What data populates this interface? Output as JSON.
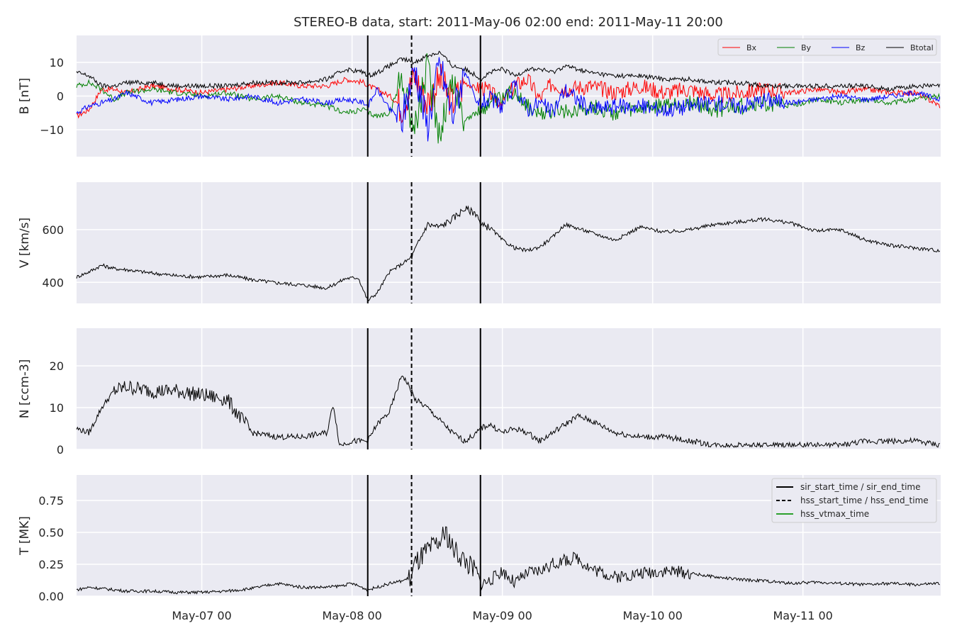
{
  "title": "STEREO-B data, start: 2011-May-06 02:00  end: 2011-May-11 20:00",
  "colors": {
    "panel_bg": "#eaeaf2",
    "grid": "#ffffff",
    "bx": "#ff0000",
    "by": "#008000",
    "bz": "#0000ff",
    "btotal": "#000000",
    "event_line": "#000000",
    "vtmax": "#2ca02c"
  },
  "time_axis": {
    "start_hours": 2,
    "end_hours": 140,
    "tick_hours": [
      22,
      46,
      70,
      94,
      118
    ],
    "tick_labels": [
      "May-07 00",
      "May-08 00",
      "May-09 00",
      "May-10 00",
      "May-11 00"
    ]
  },
  "events": {
    "sir_start_hours": 48.5,
    "hss_start_hours": 55.5,
    "sir_end_hours": 66.5
  },
  "legends": {
    "b_field": [
      "Bx",
      "By",
      "Bz",
      "Btotal"
    ],
    "events": [
      "sir_start_time / sir_end_time",
      "hss_start_time / hss_end_time",
      "hss_vtmax_time"
    ]
  },
  "chart_data": [
    {
      "type": "line",
      "ylabel": "B [nT]",
      "ylim": [
        -18,
        18
      ],
      "yticks": [
        10,
        0,
        -10
      ],
      "ytick_labels": [
        "10",
        "0",
        "−10"
      ],
      "series": [
        {
          "name": "Bx",
          "x": [
            2,
            4,
            6,
            8,
            10,
            14,
            18,
            22,
            26,
            30,
            34,
            38,
            42,
            45,
            48,
            48.5,
            50,
            52,
            54,
            56,
            58,
            60,
            62,
            64,
            66,
            66.5,
            68,
            70,
            72,
            74,
            76,
            78,
            80,
            84,
            88,
            92,
            96,
            100,
            104,
            108,
            112,
            116,
            120,
            124,
            128,
            132,
            136,
            140
          ],
          "values": [
            -6,
            -4,
            2,
            2,
            1,
            3,
            2,
            1,
            2,
            3,
            4,
            3,
            3,
            5,
            4,
            3,
            2,
            0,
            -3,
            6,
            -2,
            5,
            -2,
            4,
            2,
            3,
            1,
            -2,
            3,
            5,
            -1,
            4,
            2,
            3,
            1,
            3,
            1,
            2,
            0,
            1,
            2,
            1,
            2,
            1,
            2,
            1,
            1,
            -3
          ]
        },
        {
          "name": "By",
          "x": [
            2,
            4,
            6,
            8,
            10,
            14,
            18,
            22,
            26,
            30,
            34,
            38,
            42,
            45,
            48,
            48.5,
            50,
            52,
            54,
            56,
            58,
            60,
            62,
            64,
            66,
            66.5,
            68,
            70,
            72,
            74,
            76,
            78,
            80,
            84,
            88,
            92,
            96,
            100,
            104,
            108,
            112,
            116,
            120,
            124,
            128,
            132,
            136,
            140
          ],
          "values": [
            3,
            4,
            2,
            -1,
            1,
            2,
            1,
            0,
            1,
            -1,
            0,
            -2,
            -3,
            -5,
            -4,
            -5,
            -6,
            -5,
            6,
            -10,
            8,
            -11,
            5,
            -7,
            -5,
            -4,
            -2,
            -1,
            2,
            -3,
            -6,
            -4,
            -5,
            -3,
            -5,
            -4,
            -3,
            -2,
            -4,
            -3,
            -2,
            -3,
            -1,
            -2,
            -1,
            -2,
            -1,
            0
          ]
        },
        {
          "name": "Bz",
          "x": [
            2,
            4,
            6,
            8,
            10,
            14,
            18,
            22,
            26,
            30,
            34,
            38,
            42,
            45,
            48,
            48.5,
            50,
            52,
            54,
            56,
            58,
            60,
            62,
            64,
            66,
            66.5,
            68,
            70,
            72,
            74,
            76,
            78,
            80,
            84,
            88,
            92,
            96,
            100,
            104,
            108,
            112,
            116,
            120,
            124,
            128,
            132,
            136,
            140
          ],
          "values": [
            -5,
            -3,
            -2,
            -1,
            1,
            -2,
            -1,
            0,
            -1,
            0,
            -2,
            -1,
            -2,
            -1,
            -2,
            -3,
            2,
            -4,
            -7,
            9,
            -9,
            10,
            -6,
            8,
            -3,
            -2,
            -1,
            -3,
            3,
            -4,
            -2,
            -5,
            2,
            -4,
            -3,
            -3,
            -4,
            -3,
            -2,
            -3,
            -1,
            -2,
            -1,
            0,
            -1,
            0,
            1,
            -1
          ]
        },
        {
          "name": "Btotal",
          "x": [
            2,
            4,
            6,
            8,
            10,
            14,
            18,
            22,
            26,
            30,
            34,
            38,
            42,
            45,
            48,
            48.5,
            50,
            52,
            54,
            56,
            58,
            60,
            62,
            64,
            66,
            66.5,
            68,
            70,
            72,
            74,
            76,
            78,
            80,
            84,
            88,
            92,
            96,
            100,
            104,
            108,
            112,
            116,
            120,
            124,
            128,
            132,
            136,
            140
          ],
          "values": [
            7,
            6,
            3,
            3,
            4,
            4,
            3,
            3,
            3,
            4,
            4,
            4,
            5,
            8,
            7,
            6,
            7,
            9,
            11,
            10,
            12,
            13,
            9,
            8,
            6,
            5,
            7,
            8,
            6,
            8,
            8,
            7,
            9,
            7,
            6,
            6,
            5,
            5,
            4,
            4,
            3,
            3,
            3,
            3,
            3,
            2,
            3,
            3
          ]
        }
      ]
    },
    {
      "type": "line",
      "ylabel": "V [km/s]",
      "ylim": [
        320,
        780
      ],
      "yticks": [
        600,
        400
      ],
      "ytick_labels": [
        "600",
        "400"
      ],
      "series": [
        {
          "name": "",
          "x": [
            2,
            4,
            6,
            8,
            10,
            14,
            18,
            22,
            26,
            30,
            34,
            38,
            42,
            45,
            47,
            48.5,
            50,
            52,
            54,
            55.5,
            56,
            58,
            60,
            62,
            64,
            66,
            66.5,
            68,
            70,
            72,
            74,
            76,
            78,
            80,
            84,
            88,
            92,
            96,
            100,
            104,
            108,
            112,
            116,
            120,
            124,
            128,
            132,
            136,
            140
          ],
          "values": [
            420,
            440,
            465,
            452,
            448,
            435,
            425,
            420,
            428,
            410,
            398,
            390,
            378,
            415,
            418,
            330,
            360,
            440,
            470,
            495,
            520,
            620,
            610,
            640,
            680,
            660,
            615,
            610,
            560,
            530,
            520,
            535,
            570,
            620,
            590,
            560,
            610,
            590,
            600,
            620,
            630,
            640,
            625,
            595,
            600,
            560,
            540,
            530,
            520
          ]
        }
      ]
    },
    {
      "type": "line",
      "ylabel": "N [ccm-3]",
      "ylim": [
        0,
        29
      ],
      "yticks": [
        20,
        10,
        0
      ],
      "ytick_labels": [
        "20",
        "10",
        "0"
      ],
      "series": [
        {
          "name": "",
          "x": [
            2,
            4,
            6,
            8,
            10,
            14,
            18,
            22,
            26,
            28,
            30,
            34,
            38,
            42,
            43,
            44,
            46,
            48.5,
            50,
            52,
            54,
            55.5,
            56,
            58,
            60,
            62,
            64,
            66,
            66.5,
            68,
            70,
            72,
            74,
            76,
            78,
            80,
            82,
            84,
            88,
            92,
            96,
            100,
            104,
            108,
            112,
            116,
            120,
            124,
            128,
            132,
            136,
            140
          ],
          "values": [
            5,
            4,
            10,
            14,
            15,
            14,
            14,
            13,
            12,
            8,
            4,
            3,
            3,
            4,
            11,
            1,
            2,
            2,
            6,
            9,
            18,
            14,
            12,
            10,
            7,
            4,
            2,
            4,
            5,
            6,
            4,
            5,
            4,
            2,
            4,
            6,
            8,
            7,
            4,
            3,
            3,
            2,
            1,
            1,
            1,
            1,
            1,
            1,
            2,
            2,
            2,
            1
          ]
        }
      ]
    },
    {
      "type": "line",
      "ylabel": "T [MK]",
      "ylim": [
        0,
        0.95
      ],
      "yticks": [
        0.75,
        0.5,
        0.25,
        0.0
      ],
      "ytick_labels": [
        "0.75",
        "0.50",
        "0.25",
        "0.00"
      ],
      "series": [
        {
          "name": "",
          "x": [
            2,
            4,
            6,
            10,
            14,
            18,
            22,
            26,
            30,
            34,
            38,
            42,
            44,
            46,
            48.5,
            50,
            52,
            54,
            55.5,
            56,
            58,
            60,
            61,
            62,
            64,
            66,
            66.5,
            68,
            70,
            72,
            74,
            76,
            78,
            80,
            82,
            84,
            88,
            92,
            96,
            100,
            104,
            108,
            112,
            116,
            120,
            124,
            128,
            132,
            136,
            140
          ],
          "values": [
            0.05,
            0.07,
            0.06,
            0.04,
            0.04,
            0.03,
            0.03,
            0.04,
            0.06,
            0.1,
            0.07,
            0.07,
            0.08,
            0.1,
            0.05,
            0.07,
            0.1,
            0.12,
            0.15,
            0.25,
            0.35,
            0.42,
            0.5,
            0.38,
            0.28,
            0.18,
            0.1,
            0.12,
            0.2,
            0.1,
            0.18,
            0.2,
            0.25,
            0.28,
            0.3,
            0.22,
            0.15,
            0.18,
            0.2,
            0.18,
            0.15,
            0.13,
            0.12,
            0.1,
            0.11,
            0.1,
            0.09,
            0.1,
            0.09,
            0.1
          ]
        }
      ]
    }
  ]
}
